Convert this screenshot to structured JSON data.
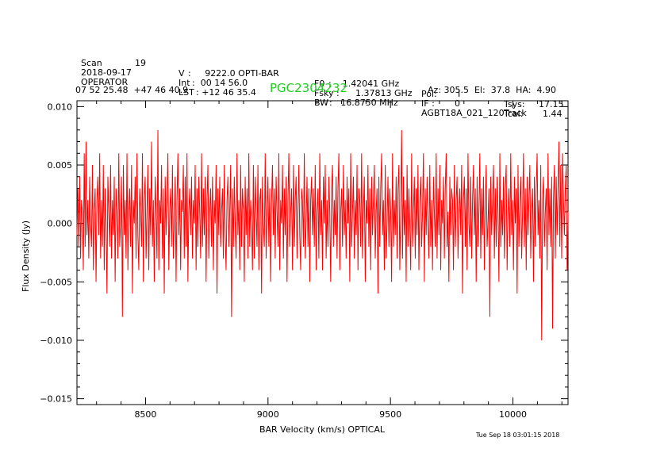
{
  "header": {
    "row1": [
      {
        "label": "Scan",
        "value": "19"
      },
      {
        "label": "V",
        "value": ":     9222.0 OPTI-BAR"
      },
      {
        "label": "F0",
        "value": ":    1.42041 GHz"
      },
      {
        "label": "Pol:",
        "value": "I"
      },
      {
        "label": "Tsys:",
        "value": "17.15"
      }
    ],
    "row2": [
      {
        "label": "2018-09-17",
        "value": ""
      },
      {
        "label": "Int",
        "value": ":  00 14 56.0"
      },
      {
        "label": "Fsky :",
        "value": "1.37813 GHz"
      },
      {
        "label": "IF :",
        "value": "0"
      },
      {
        "label": "Tcal:",
        "value": "1.44"
      }
    ],
    "row3": [
      {
        "label": "OPERATOR",
        "value": ""
      },
      {
        "label": "LST",
        "value": ": +12 46 35.4"
      },
      {
        "label": "BW",
        "value": ":   16.8750 MHz"
      },
      {
        "label": "AGBT18A_021_120",
        "value": ""
      },
      {
        "label": "Track",
        "value": ""
      }
    ],
    "coords": "07 52 25.48  +47 46 40.9",
    "object": "PGC2304232",
    "azel": "Az: 305.5  El:  37.8  HA:  4.90"
  },
  "timestamp": "Tue Sep 18 03:01:15 2018",
  "chart_data": {
    "type": "line",
    "title": "PGC2304232",
    "xlabel": "BAR Velocity (km/s) OPTICAL",
    "ylabel": "Flux Density (Jy)",
    "xlim": [
      8220,
      10225
    ],
    "ylim": [
      -0.0155,
      0.0105
    ],
    "xticks": [
      8500,
      9000,
      9500,
      10000
    ],
    "xtick_labels": [
      "8500",
      "9000",
      "9500",
      "10000"
    ],
    "yticks": [
      -0.015,
      -0.01,
      -0.005,
      0.0,
      0.005,
      0.01
    ],
    "ytick_labels": [
      "−0.015",
      "−0.010",
      "−0.005",
      "0.000",
      "0.005",
      "0.010"
    ],
    "series": [
      {
        "name": "spectrum",
        "color": "#ff0000",
        "x_start": 8220,
        "x_end": 10225,
        "y": [
          -0.001,
          0.003,
          -0.002,
          0.004,
          -0.003,
          0.002,
          0.001,
          -0.004,
          0.006,
          -0.002,
          0.007,
          -0.001,
          0.002,
          -0.003,
          0.004,
          0.0,
          -0.002,
          0.005,
          -0.004,
          0.001,
          0.003,
          -0.005,
          0.002,
          0.004,
          -0.001,
          0.006,
          -0.003,
          0.002,
          -0.002,
          0.005,
          -0.004,
          0.003,
          0.0,
          -0.006,
          0.004,
          0.001,
          -0.002,
          0.005,
          -0.003,
          0.002,
          -0.001,
          0.004,
          -0.005,
          0.003,
          0.001,
          -0.003,
          0.006,
          -0.002,
          0.0,
          0.004,
          -0.008,
          0.005,
          -0.001,
          0.002,
          -0.003,
          0.006,
          -0.004,
          0.001,
          0.003,
          -0.002,
          0.005,
          -0.006,
          0.002,
          0.0,
          0.004,
          -0.003,
          0.006,
          -0.001,
          -0.004,
          0.003,
          0.001,
          -0.002,
          0.006,
          -0.005,
          0.002,
          0.004,
          -0.003,
          0.001,
          0.005,
          -0.004,
          0.003,
          -0.001,
          0.007,
          -0.002,
          0.002,
          -0.005,
          0.004,
          0.001,
          -0.003,
          0.008,
          -0.004,
          0.002,
          0.0,
          0.005,
          -0.003,
          0.003,
          -0.006,
          0.004,
          -0.001,
          0.002,
          0.006,
          -0.004,
          0.001,
          0.003,
          -0.002,
          0.005,
          -0.003,
          0.0,
          0.004,
          -0.005,
          0.002,
          0.006,
          -0.001,
          0.003,
          -0.004,
          0.002,
          0.001,
          0.005,
          -0.003,
          0.004,
          -0.002,
          0.006,
          -0.005,
          0.001,
          0.003,
          -0.001,
          0.004,
          -0.003,
          0.002,
          0.0,
          0.005,
          -0.004,
          0.003,
          -0.002,
          0.004,
          0.001,
          -0.003,
          0.006,
          -0.002,
          0.003,
          -0.001,
          0.004,
          -0.005,
          0.002,
          0.005,
          -0.003,
          0.001,
          0.003,
          -0.002,
          0.004,
          -0.004,
          0.002,
          0.0,
          0.005,
          -0.006,
          0.003,
          -0.001,
          0.004,
          -0.002,
          0.001,
          0.003,
          -0.003,
          0.005,
          -0.001,
          -0.004,
          0.002,
          0.004,
          -0.002,
          0.001,
          0.005,
          -0.008,
          0.003,
          -0.002,
          0.004,
          0.0,
          -0.003,
          0.006,
          -0.001,
          0.002,
          -0.004,
          0.005,
          -0.002,
          0.003,
          0.001,
          -0.005,
          0.004,
          -0.001,
          0.003,
          -0.003,
          0.006,
          -0.002,
          0.002,
          0.0,
          -0.004,
          0.005,
          -0.003,
          0.004,
          0.001,
          -0.002,
          0.005,
          -0.004,
          0.002,
          0.003,
          -0.006,
          0.004,
          0.0,
          -0.002,
          0.006,
          -0.003,
          0.001,
          0.004,
          -0.002,
          0.003,
          -0.005,
          0.002,
          0.005,
          -0.001,
          0.003,
          -0.003,
          0.004,
          0.001,
          -0.002,
          0.006,
          -0.004,
          0.002,
          0.0,
          0.005,
          -0.003,
          0.003,
          -0.001,
          0.004,
          -0.005,
          0.002,
          0.006,
          -0.002,
          0.001,
          0.003,
          -0.004,
          0.005,
          -0.002,
          0.002,
          0.004,
          -0.003,
          0.001,
          0.005,
          -0.001,
          -0.004,
          0.003,
          0.002,
          -0.002,
          0.006,
          -0.003,
          0.0,
          0.004,
          -0.002,
          0.003,
          -0.005,
          0.002,
          0.004,
          -0.001,
          0.003,
          -0.002,
          0.005,
          -0.004,
          0.001,
          0.003,
          -0.003,
          0.006,
          -0.001,
          0.002,
          -0.004,
          0.004,
          0.0,
          0.005,
          -0.003,
          0.002,
          -0.002,
          0.004,
          0.001,
          -0.005,
          0.003,
          0.005,
          -0.002,
          0.002,
          -0.001,
          0.004,
          -0.003,
          0.003,
          0.006,
          -0.004,
          0.001,
          0.003,
          -0.002,
          0.005,
          -0.001,
          0.002,
          -0.003,
          0.004,
          0.0,
          0.003,
          -0.005,
          0.006,
          -0.002,
          0.001,
          0.004,
          -0.003,
          0.002,
          -0.001,
          0.005,
          -0.004,
          0.003,
          0.002,
          -0.002,
          0.006,
          -0.003,
          0.001,
          0.004,
          -0.005,
          0.002,
          0.0,
          0.005,
          -0.002,
          0.003,
          -0.004,
          0.004,
          -0.001,
          0.002,
          0.005,
          -0.003,
          0.001,
          0.003,
          -0.006,
          0.004,
          -0.002,
          0.003,
          0.006,
          -0.001,
          0.002,
          -0.004,
          0.005,
          -0.003,
          0.0,
          0.004,
          -0.002,
          0.003,
          0.001,
          -0.005,
          0.006,
          -0.002,
          0.002,
          -0.001,
          0.004,
          -0.003,
          0.003,
          0.005,
          -0.004,
          0.001,
          0.008,
          -0.003,
          0.004,
          -0.001,
          0.002,
          -0.005,
          0.005,
          -0.002,
          0.003,
          0.0,
          -0.004,
          0.006,
          -0.002,
          0.001,
          0.004,
          -0.003,
          0.003,
          -0.001,
          0.005,
          -0.004,
          0.002,
          0.004,
          -0.002,
          0.001,
          0.006,
          -0.005,
          0.003,
          -0.001,
          0.004,
          0.0,
          -0.003,
          0.005,
          -0.002,
          0.002,
          -0.004,
          0.004,
          0.001,
          -0.002,
          0.006,
          -0.003,
          0.003,
          -0.001,
          0.005,
          -0.004,
          0.002,
          0.0,
          0.004,
          -0.003,
          0.003,
          0.006,
          -0.002,
          0.001,
          -0.005,
          0.004,
          -0.001,
          0.003,
          0.002,
          -0.004,
          0.005,
          -0.002,
          0.002,
          0.004,
          -0.003,
          0.001,
          0.003,
          -0.001,
          0.005,
          -0.006,
          0.002,
          0.004,
          -0.002,
          0.003,
          -0.004,
          0.006,
          0.0,
          -0.002,
          0.004,
          -0.003,
          0.002,
          0.005,
          -0.001,
          0.003,
          -0.005,
          0.004,
          -0.002,
          0.001,
          0.006,
          -0.003,
          0.003,
          -0.001,
          0.004,
          -0.004,
          0.002,
          0.005,
          -0.002,
          0.0,
          0.003,
          -0.008,
          0.004,
          -0.001,
          0.002,
          0.005,
          -0.003,
          0.003,
          -0.002,
          0.004,
          0.001,
          -0.005,
          0.006,
          -0.002,
          0.002,
          -0.001,
          0.004,
          -0.003,
          0.003,
          0.005,
          -0.004,
          0.001,
          0.003,
          -0.002,
          0.006,
          -0.001,
          0.002,
          -0.004,
          0.004,
          0.0,
          0.003,
          -0.006,
          0.005,
          -0.002,
          0.002,
          0.004,
          -0.003,
          0.001,
          0.006,
          -0.002,
          0.003,
          -0.004,
          0.004,
          -0.001,
          0.002,
          0.005,
          -0.003,
          0.001,
          0.003,
          -0.005,
          0.004,
          -0.002,
          0.003,
          0.006,
          -0.001,
          0.002,
          -0.003,
          0.005,
          -0.01,
          0.002,
          0.004,
          -0.002,
          0.001,
          0.003,
          -0.004,
          0.006,
          -0.001,
          0.003,
          -0.002,
          0.004,
          -0.009,
          0.002,
          0.005,
          -0.003,
          0.004,
          -0.001,
          0.003,
          0.007,
          -0.002,
          0.005,
          -0.003,
          0.006,
          0.002,
          -0.001,
          0.003,
          0.005,
          -0.004,
          0.001
        ]
      }
    ]
  }
}
